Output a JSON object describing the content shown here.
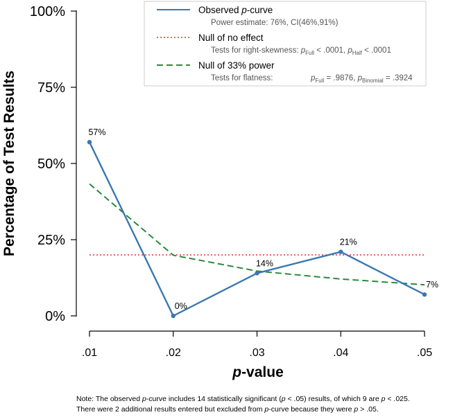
{
  "chart_data": {
    "type": "line",
    "title": "",
    "xlabel": "p-value",
    "xlabel_parts": {
      "italic": "p",
      "rest": "-value"
    },
    "ylabel": "Percentage of Test Results",
    "categories": [
      ".01",
      ".02",
      ".03",
      ".04",
      ".05"
    ],
    "yticks": [
      "0%",
      "25%",
      "50%",
      "75%",
      "100%"
    ],
    "ylim": [
      0,
      100
    ],
    "grid": false,
    "legend_position": "top-right",
    "colors": {
      "observed": "#3a78b0",
      "null_effect": "#e0302a",
      "null_33": "#2a8a3a",
      "axis": "#000000"
    },
    "series": [
      {
        "name": "Observed p-curve",
        "values": [
          57,
          0,
          14,
          21,
          7
        ],
        "labels": [
          "57%",
          "0%",
          "14%",
          "21%",
          "7%"
        ],
        "style": "solid"
      },
      {
        "name": "Null of no effect",
        "values": [
          20,
          20,
          20,
          20,
          20
        ],
        "style": "dotted"
      },
      {
        "name": "Null of 33% power",
        "values": [
          43.3,
          19.9,
          14.7,
          12.1,
          10.2
        ],
        "style": "dashed"
      }
    ],
    "legend": {
      "observed_main_pre": "Observed ",
      "observed_main_it": "p",
      "observed_main_post": "-curve",
      "observed_sub": "Power estimate: 76%, CI(46%,91%)",
      "null_main": "Null of no effect",
      "null_sub_pre": "Tests for right-skewness: ",
      "null_sub_p1": "p",
      "null_sub_full": "Full",
      "null_sub_v1": " < .0001,  ",
      "null_sub_p2": "p",
      "null_sub_half": "Half",
      "null_sub_v2": " < .0001",
      "power_main": "Null of 33% power",
      "power_sub_pre": "Tests for flatness:",
      "power_sub_p1": "p",
      "power_sub_full": "Full",
      "power_sub_v1": " = .9876,  ",
      "power_sub_p2": "p",
      "power_sub_binom": "Binomial",
      "power_sub_v2": " = .3924"
    }
  },
  "note": {
    "line1_a": "Note: The observed ",
    "line1_p": "p",
    "line1_b": "-curve includes 14 statistically significant (",
    "line1_p2": "p",
    "line1_c": " < .05) results, of which 9 are ",
    "line1_p3": "p",
    "line1_d": " < .025.",
    "line2_a": "There were 2 additional results entered but excluded from ",
    "line2_p": "p",
    "line2_b": "-curve because they were ",
    "line2_p2": "p",
    "line2_c": " > .05."
  }
}
